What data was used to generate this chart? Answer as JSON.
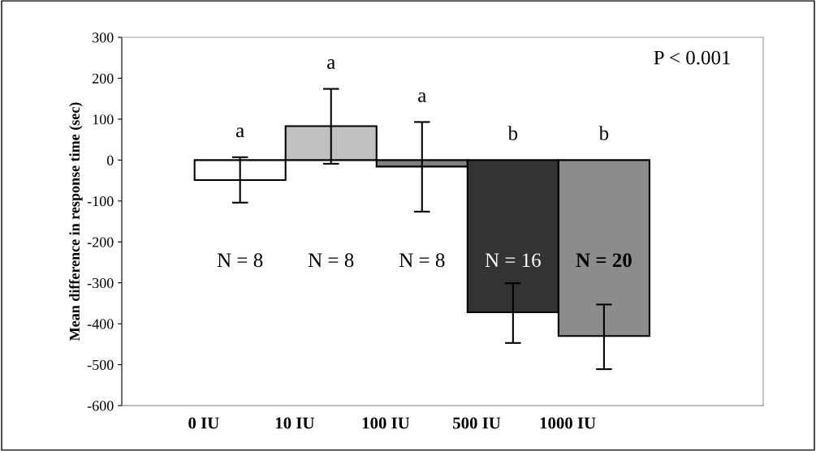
{
  "chart_data": {
    "type": "bar",
    "ylabel": "Mean difference in response time (sec)",
    "categories": [
      "0 IU",
      "10 IU",
      "100 IU",
      "500 IU",
      "1000 IU"
    ],
    "values": [
      -49,
      83,
      -16,
      -372,
      -430
    ],
    "colors": [
      "#ffffff",
      "#c0c0c0",
      "#808080",
      "#333333",
      "#8c8c8c"
    ],
    "errors": [
      [
        -104,
        7
      ],
      [
        -9,
        174
      ],
      [
        -126,
        93
      ],
      [
        -447,
        -301
      ],
      [
        -511,
        -353
      ]
    ],
    "ylim": [
      -600,
      300
    ],
    "yticks": [
      -600,
      -500,
      -400,
      -300,
      -200,
      -100,
      0,
      100,
      200,
      300
    ],
    "grid": false,
    "annotations": [
      "a",
      "a",
      "a",
      "b",
      "b",
      "N = 8",
      "N = 8",
      "N = 8",
      "N = 16",
      "N = 20",
      "P < 0.001"
    ]
  }
}
